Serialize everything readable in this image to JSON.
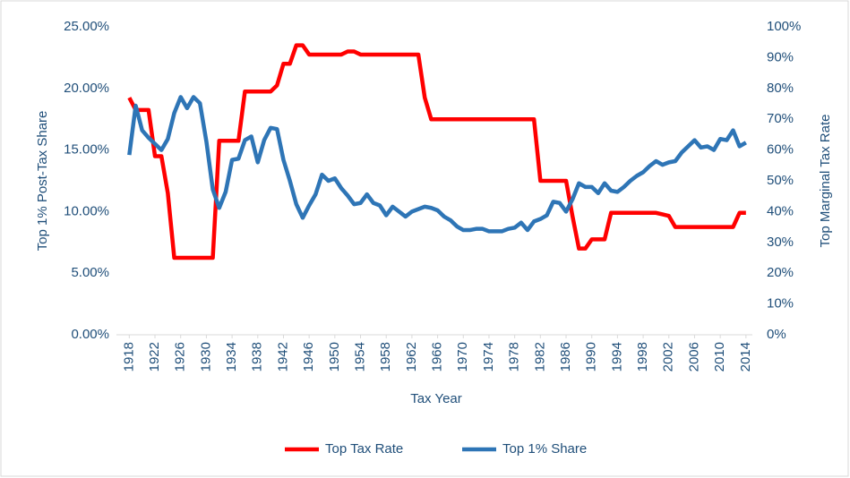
{
  "chart_data": {
    "type": "line",
    "xlabel": "Tax Year",
    "ylabel": "Top 1% Post-Tax Share",
    "y2label": "Top Marginal Tax Rate",
    "x": [
      1918,
      1919,
      1920,
      1921,
      1922,
      1923,
      1924,
      1925,
      1926,
      1927,
      1928,
      1929,
      1930,
      1931,
      1932,
      1933,
      1934,
      1935,
      1936,
      1937,
      1938,
      1939,
      1940,
      1941,
      1942,
      1943,
      1944,
      1945,
      1946,
      1947,
      1948,
      1949,
      1950,
      1951,
      1952,
      1953,
      1954,
      1955,
      1956,
      1957,
      1958,
      1959,
      1960,
      1961,
      1962,
      1963,
      1964,
      1965,
      1966,
      1967,
      1968,
      1969,
      1970,
      1971,
      1972,
      1973,
      1974,
      1975,
      1976,
      1977,
      1978,
      1979,
      1980,
      1981,
      1982,
      1983,
      1984,
      1985,
      1986,
      1987,
      1988,
      1989,
      1990,
      1991,
      1992,
      1993,
      1994,
      1995,
      1996,
      1997,
      1998,
      1999,
      2000,
      2001,
      2002,
      2003,
      2004,
      2005,
      2006,
      2007,
      2008,
      2009,
      2010,
      2011,
      2012,
      2013,
      2014
    ],
    "series": [
      {
        "name": "Top Tax Rate",
        "color": "#ff0000",
        "axis": "y2",
        "values": [
          77,
          73,
          73,
          73,
          58,
          58,
          46,
          25,
          25,
          25,
          25,
          25,
          25,
          25,
          63,
          63,
          63,
          63,
          79,
          79,
          79,
          79,
          79,
          81,
          88,
          88,
          94,
          94,
          91,
          91,
          91,
          91,
          91,
          91,
          92,
          92,
          91,
          91,
          91,
          91,
          91,
          91,
          91,
          91,
          91,
          91,
          77,
          70,
          70,
          70,
          70,
          70,
          70,
          70,
          70,
          70,
          70,
          70,
          70,
          70,
          70,
          70,
          70,
          70,
          50,
          50,
          50,
          50,
          50,
          38.5,
          28,
          28,
          31,
          31,
          31,
          39.6,
          39.6,
          39.6,
          39.6,
          39.6,
          39.6,
          39.6,
          39.6,
          39.1,
          38.6,
          35,
          35,
          35,
          35,
          35,
          35,
          35,
          35,
          35,
          35,
          39.6,
          39.6
        ]
      },
      {
        "name": "Top 1% Share",
        "color": "#2e75b6",
        "values": [
          14.6,
          18.6,
          16.6,
          16.0,
          15.5,
          15.0,
          15.9,
          18.0,
          19.3,
          18.4,
          19.3,
          18.8,
          15.7,
          11.8,
          10.3,
          11.6,
          14.2,
          14.3,
          15.8,
          16.1,
          14.0,
          15.8,
          16.8,
          16.7,
          14.2,
          12.5,
          10.6,
          9.5,
          10.5,
          11.4,
          13.0,
          12.5,
          12.7,
          11.9,
          11.3,
          10.6,
          10.7,
          11.4,
          10.7,
          10.5,
          9.7,
          10.4,
          10.0,
          9.6,
          10.0,
          10.2,
          10.4,
          10.3,
          10.1,
          9.6,
          9.3,
          8.8,
          8.5,
          8.5,
          8.6,
          8.6,
          8.4,
          8.4,
          8.4,
          8.6,
          8.7,
          9.1,
          8.5,
          9.2,
          9.4,
          9.7,
          10.8,
          10.7,
          10.0,
          11.0,
          12.3,
          12.0,
          12.0,
          11.5,
          12.3,
          11.7,
          11.6,
          12.0,
          12.5,
          12.9,
          13.2,
          13.7,
          14.1,
          13.8,
          14.0,
          14.1,
          14.8,
          15.3,
          15.8,
          15.2,
          15.3,
          15.0,
          15.9,
          15.8,
          16.6,
          15.3,
          15.6
        ]
      }
    ],
    "xlim": [
      1916,
      2015
    ],
    "xticks": [
      1918,
      1922,
      1926,
      1930,
      1934,
      1938,
      1942,
      1946,
      1950,
      1954,
      1958,
      1962,
      1966,
      1970,
      1974,
      1978,
      1982,
      1986,
      1990,
      1994,
      1998,
      2002,
      2006,
      2010,
      2014
    ],
    "ylim": [
      0,
      25
    ],
    "yticks": [
      {
        "value": 0,
        "label": "0.00%"
      },
      {
        "value": 5,
        "label": "5.00%"
      },
      {
        "value": 10,
        "label": "10.00%"
      },
      {
        "value": 15,
        "label": "15.00%"
      },
      {
        "value": 20,
        "label": "20.00%"
      },
      {
        "value": 25,
        "label": "25.00%"
      }
    ],
    "y2lim": [
      0,
      100
    ],
    "y2ticks": [
      {
        "value": 0,
        "label": "0%"
      },
      {
        "value": 10,
        "label": "10%"
      },
      {
        "value": 20,
        "label": "20%"
      },
      {
        "value": 30,
        "label": "30%"
      },
      {
        "value": 40,
        "label": "40%"
      },
      {
        "value": 50,
        "label": "50%"
      },
      {
        "value": 60,
        "label": "60%"
      },
      {
        "value": 70,
        "label": "70%"
      },
      {
        "value": 80,
        "label": "80%"
      },
      {
        "value": 90,
        "label": "90%"
      },
      {
        "value": 100,
        "label": "100%"
      }
    ],
    "legend": "bottom"
  }
}
